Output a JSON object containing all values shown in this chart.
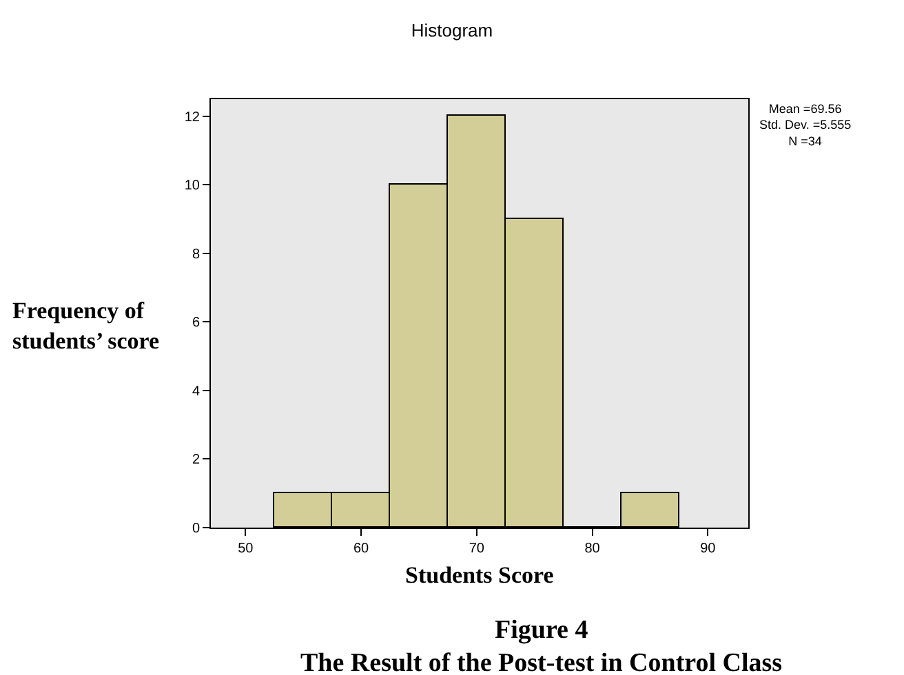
{
  "chart_data": {
    "type": "histogram",
    "title": "Histogram",
    "xlabel": "Students Score",
    "ylabel": "Frequency of\nstudents’ score",
    "bins": [
      52.5,
      57.5,
      62.5,
      67.5,
      72.5,
      77.5,
      82.5,
      87.5
    ],
    "values": [
      1,
      1,
      10,
      12,
      9,
      0,
      1
    ],
    "color": "#d3ce97",
    "xlim": [
      47,
      93.5
    ],
    "xticks": [
      50,
      60,
      70,
      80,
      90
    ],
    "ylim": [
      0,
      12.5
    ],
    "yticks": [
      0,
      2,
      4,
      6,
      8,
      10,
      12
    ],
    "annotations": [
      "Mean =69.56\nStd. Dev. =5.555\nN =34",
      "Figure 4",
      "The Result of the Post-test in Control Class"
    ]
  }
}
